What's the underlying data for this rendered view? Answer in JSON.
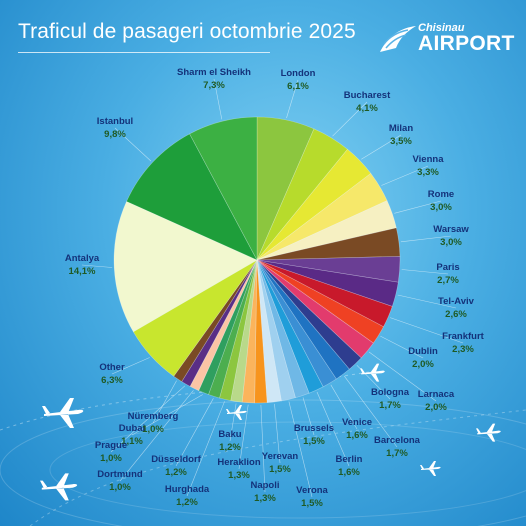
{
  "header": {
    "title": "Traficul de pasageri octombrie 2025",
    "logo_small": "Chisinau",
    "logo_big": "AIRPORT"
  },
  "chart_data": {
    "type": "pie",
    "title": "Traficul de pasageri octombrie 2025",
    "slices": [
      {
        "name": "London",
        "label": "6,1%",
        "value": 6.1,
        "color": "#8cc63f"
      },
      {
        "name": "Bucharest",
        "label": "4,1%",
        "value": 4.1,
        "color": "#b7db2c"
      },
      {
        "name": "Milan",
        "label": "3,5%",
        "value": 3.5,
        "color": "#e6e833"
      },
      {
        "name": "Vienna",
        "label": "3,3%",
        "value": 3.3,
        "color": "#f6e86a"
      },
      {
        "name": "Rome",
        "label": "3,0%",
        "value": 3.0,
        "color": "#f6f0c2"
      },
      {
        "name": "Warsaw",
        "label": "3,0%",
        "value": 3.0,
        "color": "#7a4a24"
      },
      {
        "name": "Paris",
        "label": "2,7%",
        "value": 2.7,
        "color": "#6a3e94"
      },
      {
        "name": "Tel-Aviv",
        "label": "2,6%",
        "value": 2.6,
        "color": "#5a2a86"
      },
      {
        "name": "Frankfurt",
        "label": "2,3%",
        "value": 2.3,
        "color": "#c8192b"
      },
      {
        "name": "Dublin",
        "label": "2,0%",
        "value": 2.0,
        "color": "#ef4123"
      },
      {
        "name": "Larnaca",
        "label": "2,0%",
        "value": 2.0,
        "color": "#e23b6d"
      },
      {
        "name": "Bologna",
        "label": "1,7%",
        "value": 1.7,
        "color": "#2e3d8f"
      },
      {
        "name": "Barcelona",
        "label": "1,7%",
        "value": 1.7,
        "color": "#1f73c2"
      },
      {
        "name": "Venice",
        "label": "1,6%",
        "value": 1.6,
        "color": "#3a8fd4"
      },
      {
        "name": "Berlin",
        "label": "1,6%",
        "value": 1.6,
        "color": "#1f9dd9"
      },
      {
        "name": "Brussels",
        "label": "1,5%",
        "value": 1.5,
        "color": "#6fb8e6"
      },
      {
        "name": "Verona",
        "label": "1,5%",
        "value": 1.5,
        "color": "#9fd0ef"
      },
      {
        "name": "Yerevan",
        "label": "1,5%",
        "value": 1.5,
        "color": "#cfe7f6"
      },
      {
        "name": "Napoli",
        "label": "1,3%",
        "value": 1.3,
        "color": "#f7941d"
      },
      {
        "name": "Heraklion",
        "label": "1,3%",
        "value": 1.3,
        "color": "#fbb45c"
      },
      {
        "name": "Baku",
        "label": "1,2%",
        "value": 1.2,
        "color": "#b9d98a"
      },
      {
        "name": "Hurghada",
        "label": "1,2%",
        "value": 1.2,
        "color": "#8cc63f"
      },
      {
        "name": "Düsseldorf",
        "label": "1,2%",
        "value": 1.2,
        "color": "#4cae4f"
      },
      {
        "name": "Dubai",
        "label": "1,1%",
        "value": 1.1,
        "color": "#2f9f5f"
      },
      {
        "name": "Dortmund",
        "label": "1,0%",
        "value": 1.0,
        "color": "#fbc5a5"
      },
      {
        "name": "Prague",
        "label": "1,0%",
        "value": 1.0,
        "color": "#5a2e86"
      },
      {
        "name": "Nüremberg",
        "label": "1,0%",
        "value": 1.0,
        "color": "#7a4a24"
      },
      {
        "name": "Other",
        "label": "6,3%",
        "value": 6.3,
        "color": "#c8e62e"
      },
      {
        "name": "Antalya",
        "label": "14,1%",
        "value": 14.1,
        "color": "#f2f8cf"
      },
      {
        "name": "Istanbul",
        "label": "9,8%",
        "value": 9.8,
        "color": "#1e9e3a"
      },
      {
        "name": "Sharm el Sheikh",
        "label": "7,3%",
        "value": 7.3,
        "color": "#3cb043"
      }
    ]
  }
}
